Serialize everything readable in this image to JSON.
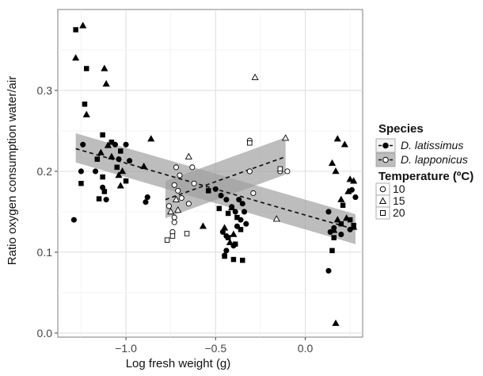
{
  "chart_data": {
    "type": "scatter",
    "title": "",
    "xlabel": "Log fresh weight (g)",
    "ylabel": "Ratio oxygen consumption water/air",
    "xlim": [
      -1.38,
      0.32
    ],
    "ylim": [
      -0.005,
      0.4
    ],
    "xticks": [
      -1.0,
      -0.5,
      0.0
    ],
    "xtick_labels": [
      "−1.0",
      "−0.5",
      "0.0"
    ],
    "yticks": [
      0.0,
      0.1,
      0.2,
      0.3
    ],
    "ytick_labels": [
      "0.0",
      "0.1",
      "0.2",
      "0.3"
    ],
    "grid": true,
    "legend_position": "right",
    "legend": {
      "species_title": "Species",
      "species": [
        "D. latissimus",
        "D. lapponicus"
      ],
      "temperature_title": "Temperature (ºC)",
      "temperatures": [
        "10",
        "15",
        "20"
      ]
    },
    "series": [
      {
        "name": "D. latissimus",
        "fill": "#000000",
        "points": [
          {
            "x": -1.28,
            "y": 0.375,
            "t": "20"
          },
          {
            "x": -1.22,
            "y": 0.327,
            "t": "20"
          },
          {
            "x": -1.23,
            "y": 0.283,
            "t": "20"
          },
          {
            "x": -1.13,
            "y": 0.245,
            "t": "20"
          },
          {
            "x": -1.08,
            "y": 0.236,
            "t": "20"
          },
          {
            "x": -1.03,
            "y": 0.225,
            "t": "20"
          },
          {
            "x": -1.16,
            "y": 0.215,
            "t": "20"
          },
          {
            "x": -1.05,
            "y": 0.205,
            "t": "20"
          },
          {
            "x": -1.13,
            "y": 0.193,
            "t": "20"
          },
          {
            "x": -1.25,
            "y": 0.185,
            "t": "20"
          },
          {
            "x": -1.12,
            "y": 0.175,
            "t": "20"
          },
          {
            "x": -1.15,
            "y": 0.166,
            "t": "20"
          },
          {
            "x": -1.0,
            "y": 0.188,
            "t": "20"
          },
          {
            "x": -0.54,
            "y": 0.176,
            "t": "20"
          },
          {
            "x": -0.48,
            "y": 0.154,
            "t": "20"
          },
          {
            "x": -0.43,
            "y": 0.148,
            "t": "20"
          },
          {
            "x": -0.38,
            "y": 0.143,
            "t": "20"
          },
          {
            "x": -0.36,
            "y": 0.128,
            "t": "20"
          },
          {
            "x": -0.43,
            "y": 0.118,
            "t": "20"
          },
          {
            "x": -0.39,
            "y": 0.11,
            "t": "20"
          },
          {
            "x": -0.45,
            "y": 0.095,
            "t": "20"
          },
          {
            "x": -0.4,
            "y": 0.091,
            "t": "20"
          },
          {
            "x": -0.35,
            "y": 0.09,
            "t": "20"
          },
          {
            "x": 0.15,
            "y": 0.102,
            "t": "20"
          },
          {
            "x": 0.16,
            "y": 0.118,
            "t": "20"
          },
          {
            "x": 0.2,
            "y": 0.135,
            "t": "20"
          },
          {
            "x": 0.25,
            "y": 0.14,
            "t": "20"
          },
          {
            "x": 0.27,
            "y": 0.133,
            "t": "20"
          },
          {
            "x": 0.21,
            "y": 0.158,
            "t": "20"
          },
          {
            "x": -1.28,
            "y": 0.34,
            "t": "15"
          },
          {
            "x": -1.24,
            "y": 0.38,
            "t": "15"
          },
          {
            "x": -1.22,
            "y": 0.27,
            "t": "15"
          },
          {
            "x": -1.12,
            "y": 0.327,
            "t": "15"
          },
          {
            "x": -1.11,
            "y": 0.308,
            "t": "15"
          },
          {
            "x": -1.1,
            "y": 0.232,
            "t": "15"
          },
          {
            "x": -1.14,
            "y": 0.223,
            "t": "15"
          },
          {
            "x": -1.08,
            "y": 0.218,
            "t": "15"
          },
          {
            "x": -1.02,
            "y": 0.2,
            "t": "15"
          },
          {
            "x": -1.04,
            "y": 0.195,
            "t": "15"
          },
          {
            "x": -1.03,
            "y": 0.182,
            "t": "15"
          },
          {
            "x": -0.9,
            "y": 0.206,
            "t": "15"
          },
          {
            "x": -0.86,
            "y": 0.24,
            "t": "15"
          },
          {
            "x": -0.57,
            "y": 0.132,
            "t": "15"
          },
          {
            "x": -0.41,
            "y": 0.155,
            "t": "15"
          },
          {
            "x": -0.45,
            "y": 0.13,
            "t": "15"
          },
          {
            "x": -0.4,
            "y": 0.122,
            "t": "15"
          },
          {
            "x": -0.42,
            "y": 0.112,
            "t": "15"
          },
          {
            "x": 0.15,
            "y": 0.21,
            "t": "15"
          },
          {
            "x": 0.17,
            "y": 0.2,
            "t": "15"
          },
          {
            "x": 0.18,
            "y": 0.24,
            "t": "15"
          },
          {
            "x": 0.22,
            "y": 0.233,
            "t": "15"
          },
          {
            "x": 0.25,
            "y": 0.19,
            "t": "15"
          },
          {
            "x": 0.27,
            "y": 0.188,
            "t": "15"
          },
          {
            "x": 0.24,
            "y": 0.175,
            "t": "15"
          },
          {
            "x": 0.2,
            "y": 0.165,
            "t": "15"
          },
          {
            "x": 0.18,
            "y": 0.14,
            "t": "15"
          },
          {
            "x": 0.23,
            "y": 0.142,
            "t": "15"
          },
          {
            "x": 0.27,
            "y": 0.131,
            "t": "15"
          },
          {
            "x": 0.16,
            "y": 0.127,
            "t": "15"
          },
          {
            "x": 0.17,
            "y": 0.012,
            "t": "15"
          },
          {
            "x": -1.29,
            "y": 0.14,
            "t": "10"
          },
          {
            "x": -1.24,
            "y": 0.233,
            "t": "10"
          },
          {
            "x": -1.25,
            "y": 0.2,
            "t": "10"
          },
          {
            "x": -1.17,
            "y": 0.2,
            "t": "10"
          },
          {
            "x": -1.13,
            "y": 0.18,
            "t": "10"
          },
          {
            "x": -1.11,
            "y": 0.165,
            "t": "10"
          },
          {
            "x": -1.06,
            "y": 0.233,
            "t": "10"
          },
          {
            "x": -1.04,
            "y": 0.215,
            "t": "10"
          },
          {
            "x": -1.0,
            "y": 0.233,
            "t": "10"
          },
          {
            "x": -0.98,
            "y": 0.213,
            "t": "10"
          },
          {
            "x": -0.88,
            "y": 0.168,
            "t": "10"
          },
          {
            "x": -0.89,
            "y": 0.162,
            "t": "10"
          },
          {
            "x": -0.5,
            "y": 0.178,
            "t": "10"
          },
          {
            "x": -0.47,
            "y": 0.17,
            "t": "10"
          },
          {
            "x": -0.44,
            "y": 0.165,
            "t": "10"
          },
          {
            "x": -0.41,
            "y": 0.156,
            "t": "10"
          },
          {
            "x": -0.39,
            "y": 0.15,
            "t": "10"
          },
          {
            "x": -0.37,
            "y": 0.165,
            "t": "10"
          },
          {
            "x": -0.35,
            "y": 0.16,
            "t": "10"
          },
          {
            "x": -0.34,
            "y": 0.15,
            "t": "10"
          },
          {
            "x": -0.36,
            "y": 0.14,
            "t": "10"
          },
          {
            "x": -0.33,
            "y": 0.135,
            "t": "10"
          },
          {
            "x": -0.38,
            "y": 0.132,
            "t": "10"
          },
          {
            "x": -0.46,
            "y": 0.125,
            "t": "10"
          },
          {
            "x": -0.44,
            "y": 0.12,
            "t": "10"
          },
          {
            "x": -0.4,
            "y": 0.108,
            "t": "10"
          },
          {
            "x": -0.44,
            "y": 0.102,
            "t": "10"
          },
          {
            "x": -0.45,
            "y": 0.096,
            "t": "10"
          },
          {
            "x": 0.13,
            "y": 0.15,
            "t": "10"
          },
          {
            "x": 0.16,
            "y": 0.13,
            "t": "10"
          },
          {
            "x": 0.14,
            "y": 0.125,
            "t": "10"
          },
          {
            "x": 0.26,
            "y": 0.177,
            "t": "10"
          },
          {
            "x": 0.28,
            "y": 0.168,
            "t": "10"
          },
          {
            "x": 0.25,
            "y": 0.128,
            "t": "10"
          },
          {
            "x": 0.13,
            "y": 0.077,
            "t": "10"
          },
          {
            "x": 0.2,
            "y": 0.122,
            "t": "10"
          }
        ]
      },
      {
        "name": "D. lapponicus",
        "fill": "#ffffff",
        "points": [
          {
            "x": -0.72,
            "y": 0.205,
            "t": "10"
          },
          {
            "x": -0.7,
            "y": 0.195,
            "t": "10"
          },
          {
            "x": -0.73,
            "y": 0.183,
            "t": "10"
          },
          {
            "x": -0.71,
            "y": 0.176,
            "t": "10"
          },
          {
            "x": -0.69,
            "y": 0.167,
            "t": "10"
          },
          {
            "x": -0.76,
            "y": 0.157,
            "t": "10"
          },
          {
            "x": -0.73,
            "y": 0.143,
            "t": "10"
          },
          {
            "x": -0.73,
            "y": 0.137,
            "t": "10"
          },
          {
            "x": -0.74,
            "y": 0.125,
            "t": "10"
          },
          {
            "x": -0.63,
            "y": 0.205,
            "t": "10"
          },
          {
            "x": -0.62,
            "y": 0.185,
            "t": "10"
          },
          {
            "x": -0.65,
            "y": 0.16,
            "t": "10"
          },
          {
            "x": -0.31,
            "y": 0.238,
            "t": "10"
          },
          {
            "x": -0.31,
            "y": 0.2,
            "t": "10"
          },
          {
            "x": -0.29,
            "y": 0.173,
            "t": "10"
          },
          {
            "x": -0.14,
            "y": 0.2,
            "t": "10"
          },
          {
            "x": -0.1,
            "y": 0.2,
            "t": "10"
          },
          {
            "x": -0.75,
            "y": 0.15,
            "t": "15"
          },
          {
            "x": -0.72,
            "y": 0.165,
            "t": "15"
          },
          {
            "x": -0.71,
            "y": 0.152,
            "t": "15"
          },
          {
            "x": -0.65,
            "y": 0.218,
            "t": "15"
          },
          {
            "x": -0.28,
            "y": 0.316,
            "t": "15"
          },
          {
            "x": -0.11,
            "y": 0.241,
            "t": "15"
          },
          {
            "x": -0.16,
            "y": 0.141,
            "t": "15"
          },
          {
            "x": -0.77,
            "y": 0.115,
            "t": "20"
          },
          {
            "x": -0.74,
            "y": 0.12,
            "t": "20"
          },
          {
            "x": -0.66,
            "y": 0.123,
            "t": "20"
          },
          {
            "x": -0.14,
            "y": 0.203,
            "t": "20"
          },
          {
            "x": -0.31,
            "y": 0.235,
            "t": "20"
          }
        ]
      }
    ],
    "fits": [
      {
        "series": "D. latissimus",
        "x": [
          -1.28,
          0.28
        ],
        "y": [
          0.228,
          0.128
        ],
        "ci_lower": [
          0.211,
          0.11
        ],
        "ci_upper": [
          0.247,
          0.147
        ]
      },
      {
        "series": "D. lapponicus",
        "x": [
          -0.78,
          -0.11
        ],
        "y": [
          0.165,
          0.218
        ],
        "ci_lower": [
          0.142,
          0.196
        ],
        "ci_upper": [
          0.188,
          0.242
        ]
      }
    ]
  }
}
